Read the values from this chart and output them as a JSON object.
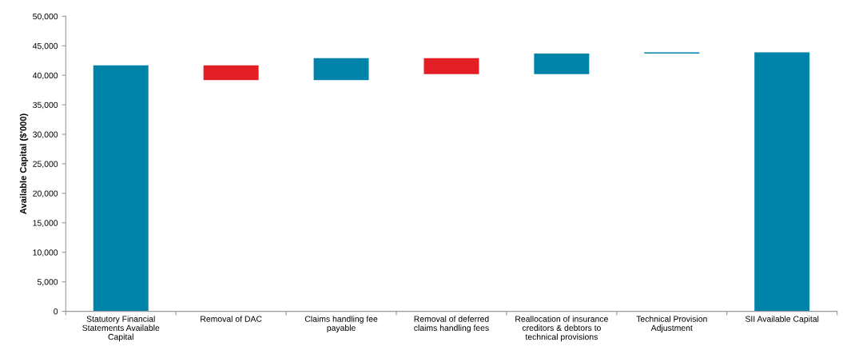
{
  "chart_data": {
    "type": "bar",
    "ylabel": "Available Capital ($'000)",
    "categories": [
      "Statutory Financial\nStatements Available\nCapital",
      "Removal of DAC",
      "Claims handling fee\npayable",
      "Removal of deferred\nclaims handling fees",
      "Reallocation of insurance\ncreditors & debtors to\ntechnical provisions",
      "Technical Provision\nAdjustment",
      "SII Available Capital"
    ],
    "base": [
      0,
      41700,
      39200,
      42900,
      40200,
      43700,
      0
    ],
    "values": [
      41700,
      -2500,
      3700,
      -2700,
      3500,
      200,
      43900
    ],
    "colors": [
      "#0083a9",
      "#e31e24",
      "#0083a9",
      "#e31e24",
      "#0083a9",
      "#0083a9",
      "#0083a9"
    ],
    "ylim": [
      0,
      50000
    ],
    "yticks": [
      0,
      {
        "value": 5000,
        "label": "5,000"
      },
      {
        "value": 10000,
        "label": "10,000"
      },
      {
        "value": 15000,
        "label": "15,000"
      },
      {
        "value": 20000,
        "label": "20,000"
      },
      {
        "value": 25000,
        "label": "25,000"
      },
      {
        "value": 30000,
        "label": "30,000"
      },
      {
        "value": 35000,
        "label": "35,000"
      },
      {
        "value": 40000,
        "label": "40,000"
      },
      {
        "value": 45000,
        "label": "45,000"
      },
      {
        "value": 50000,
        "label": "50,000"
      }
    ],
    "grid": false,
    "legend": false
  }
}
